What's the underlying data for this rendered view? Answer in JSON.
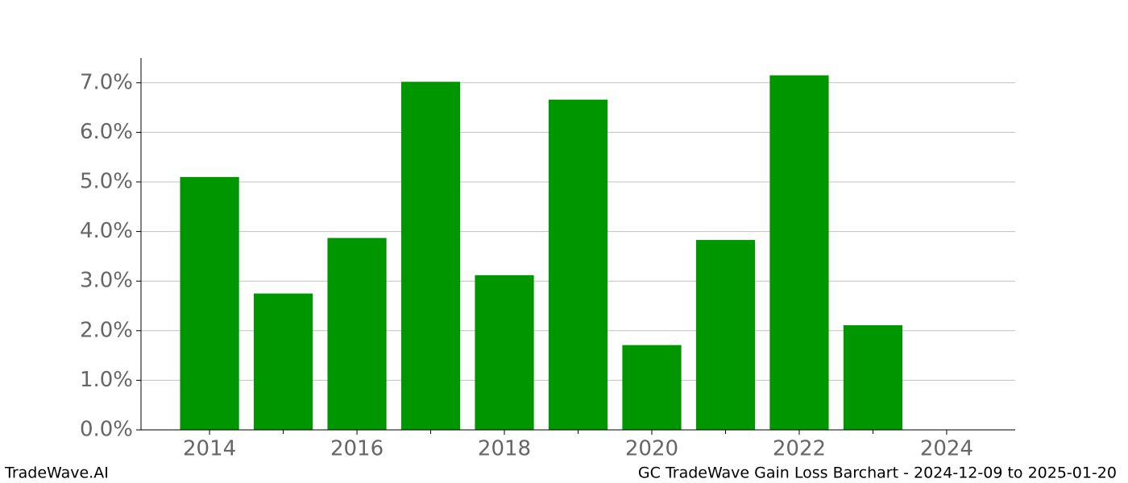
{
  "chart_data": {
    "type": "bar",
    "title": "GC TradeWave Gain Loss Barchart - 2024-12-09 to 2025-01-20",
    "brand": "TradeWave.AI",
    "x": [
      2014,
      2015,
      2016,
      2017,
      2018,
      2019,
      2020,
      2021,
      2022,
      2023
    ],
    "values": [
      5.1,
      2.75,
      3.87,
      7.02,
      3.12,
      6.66,
      1.71,
      3.83,
      7.15,
      2.11
    ],
    "color": "#009600",
    "xlim": [
      2013.07,
      2024.93
    ],
    "xticks": [
      2014,
      2016,
      2018,
      2020,
      2022,
      2024
    ],
    "minor_xticks": [
      2015,
      2017,
      2019,
      2021,
      2023
    ],
    "ylim": [
      0,
      7.5
    ],
    "yticks": [
      {
        "value": 0,
        "label": "0.0%"
      },
      {
        "value": 1,
        "label": "1.0%"
      },
      {
        "value": 2,
        "label": "2.0%"
      },
      {
        "value": 3,
        "label": "3.0%"
      },
      {
        "value": 4,
        "label": "4.0%"
      },
      {
        "value": 5,
        "label": "5.0%"
      },
      {
        "value": 6,
        "label": "6.0%"
      },
      {
        "value": 7,
        "label": "7.0%"
      }
    ],
    "grid": true
  }
}
